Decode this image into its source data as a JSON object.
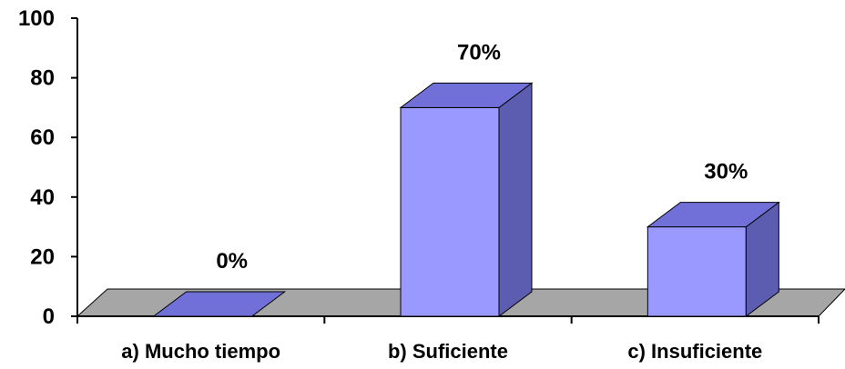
{
  "chart_data": {
    "type": "bar",
    "style": "3d",
    "categories": [
      "a) Mucho tiempo",
      "b) Suficiente",
      "c) Insuficiente"
    ],
    "values": [
      0,
      70,
      30
    ],
    "data_labels": [
      "0%",
      "70%",
      "30%"
    ],
    "y_ticks": [
      "0",
      "20",
      "40",
      "60",
      "80",
      "100"
    ],
    "ylim": [
      0,
      100
    ],
    "title": "",
    "xlabel": "",
    "ylabel": "",
    "grid": false,
    "colors": {
      "bar_front": "#9999FF",
      "bar_top": "#7070D8",
      "bar_side": "#5C5CB0",
      "floor": "#A6A6A6"
    }
  }
}
